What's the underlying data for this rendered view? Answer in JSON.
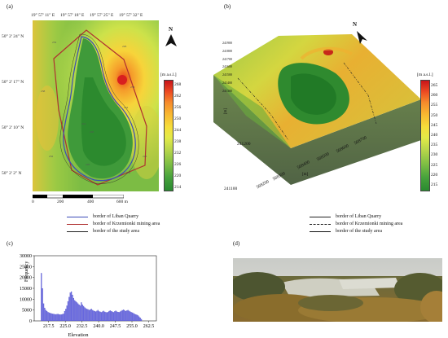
{
  "panels": {
    "a": "(a)",
    "b": "(b)",
    "c": "(c)",
    "d": "(d)"
  },
  "map_a": {
    "top_ticks": [
      "19° 57' 11\" E",
      "19° 57' 18\" E",
      "19° 57' 25\" E",
      "19° 57' 32\" E"
    ],
    "left_ticks": [
      "50° 2' 24\" N",
      "50° 2' 17\" N",
      "50° 2' 10\" N",
      "50° 2' 2\" N"
    ],
    "north": "N",
    "scale_labels": [
      "0",
      "200",
      "400",
      "600 m"
    ],
    "colorbar_title": "[m a.s.l.]",
    "colorbar_ticks": [
      "268",
      "262",
      "256",
      "250",
      "244",
      "238",
      "232",
      "226",
      "220",
      "214"
    ],
    "contour_labels": [
      "232",
      "226",
      "238",
      "244",
      "232",
      "238",
      "226",
      "226",
      "220",
      "214",
      "232"
    ]
  },
  "map_b": {
    "north": "N",
    "colorbar_title": "[m a.s.l.]",
    "colorbar_ticks": [
      "265",
      "260",
      "255",
      "250",
      "245",
      "240",
      "235",
      "230",
      "225",
      "220",
      "215"
    ],
    "y_ticks": [
      "241100",
      "241200",
      "241300",
      "241400",
      "241500",
      "241600",
      "241700",
      "241800",
      "241900"
    ],
    "x_ticks": [
      "568200",
      "568300",
      "568400",
      "568500",
      "568600",
      "568700"
    ],
    "y_unit": "[m]",
    "x_unit": "[m]"
  },
  "legend": [
    {
      "label": "border of Liban Quarry",
      "color": "#3b4bb8"
    },
    {
      "label": "border of Krzemionki mining area",
      "color": "#b03030"
    },
    {
      "label": "border of the study area",
      "color": "#222222"
    }
  ],
  "legend_b": [
    {
      "label": "border of Liban Quarry",
      "style": "solid"
    },
    {
      "label": "border of Krzemionki mining area",
      "style": "dashdot"
    },
    {
      "label": "border of the study area",
      "style": "solid-thick"
    }
  ],
  "chart_data": {
    "type": "bar",
    "xlabel": "Elevation",
    "ylabel": "Frequency",
    "xlim": [
      211,
      266
    ],
    "ylim": [
      0,
      30000
    ],
    "x_ticks": [
      "217.5",
      "225.0",
      "232.5",
      "240.0",
      "247.5",
      "255.0",
      "262.5"
    ],
    "y_ticks": [
      "0",
      "5000",
      "10000",
      "15000",
      "20000",
      "25000",
      "30000"
    ],
    "bin_start": 214,
    "bin_width": 0.5,
    "values": [
      22000,
      15000,
      8000,
      6000,
      5000,
      4500,
      4000,
      3800,
      3600,
      3400,
      3300,
      3200,
      3100,
      3000,
      3100,
      3200,
      3000,
      2900,
      3000,
      3100,
      3300,
      4500,
      5500,
      7000,
      9000,
      11000,
      13000,
      13500,
      12000,
      10500,
      9500,
      9000,
      8500,
      8000,
      7500,
      7000,
      8500,
      7500,
      6800,
      6200,
      5800,
      5500,
      5300,
      5000,
      5200,
      5600,
      5000,
      4700,
      4500,
      4300,
      4600,
      5000,
      4400,
      4200,
      4000,
      4300,
      4600,
      4200,
      4000,
      3900,
      4100,
      4500,
      4800,
      4500,
      4200,
      4000,
      4400,
      4700,
      4300,
      4100,
      4000,
      4300,
      4600,
      4900,
      5200,
      4800,
      4500,
      4800,
      5000,
      4600,
      4300,
      4000,
      3800,
      3500,
      3200,
      3000,
      2800,
      2500,
      2000,
      1500,
      800
    ]
  },
  "photo": {
    "description_icon": "quarry-photo"
  }
}
